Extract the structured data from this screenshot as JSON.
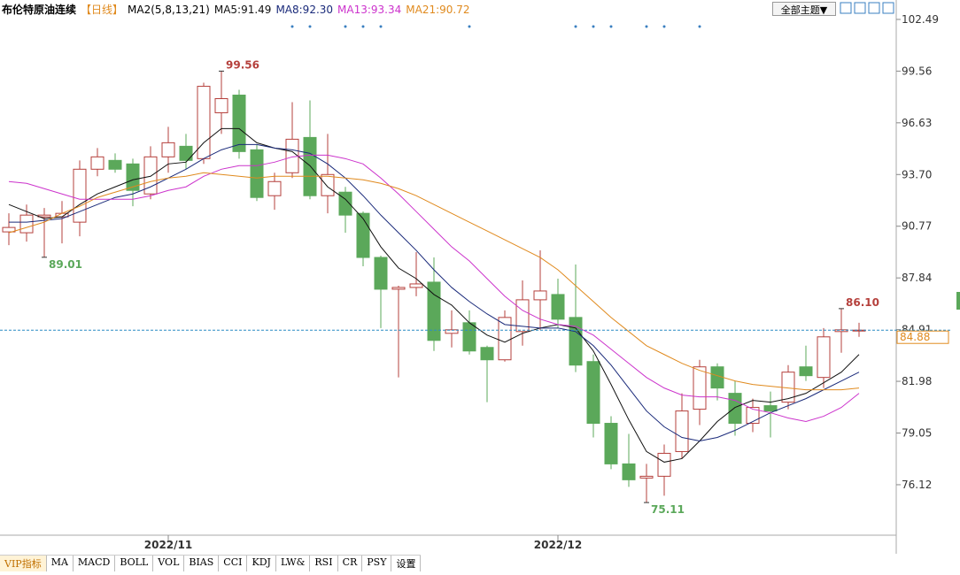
{
  "chart_data": {
    "type": "candlestick",
    "title": "布伦特原油连续",
    "period": "【日线】",
    "indicator": "MA2(5,8,13,21)",
    "up_color": "#b5403c",
    "down_color": "#5ba85a",
    "ylim": [
      73.26,
      103.59
    ],
    "yticks": [
      102.49,
      99.56,
      96.63,
      {
        "value": 93.7,
        "label": "93.70"
      },
      90.77,
      87.84,
      84.91,
      81.98,
      79.05,
      76.12
    ],
    "xticks": [
      {
        "value": 9,
        "label": "2022/11"
      },
      {
        "value": 31,
        "label": "2022/12"
      }
    ],
    "open": [
      90.45,
      90.4,
      91.3,
      91.3,
      91.0,
      94.0,
      94.5,
      94.3,
      92.6,
      94.7,
      95.3,
      94.6,
      97.2,
      98.2,
      95.1,
      92.5,
      93.8,
      95.8,
      92.5,
      92.7,
      91.5,
      89.0,
      87.2,
      87.3,
      87.6,
      84.7,
      85.3,
      83.9,
      83.2,
      84.8,
      86.6,
      86.9,
      85.6,
      83.1,
      79.6,
      77.3,
      76.5,
      76.6,
      78.0,
      80.4,
      82.8,
      81.3,
      79.6,
      80.6,
      80.8,
      82.8,
      82.2,
      84.8,
      84.88
    ],
    "high": [
      91.5,
      92.0,
      91.8,
      92.2,
      94.5,
      95.2,
      94.9,
      94.6,
      95.3,
      96.4,
      96.0,
      98.9,
      99.56,
      98.5,
      95.4,
      93.8,
      97.8,
      97.9,
      96.0,
      93.0,
      91.6,
      89.1,
      87.4,
      89.3,
      89.0,
      86.0,
      86.0,
      84.0,
      86.0,
      87.7,
      89.4,
      87.8,
      88.6,
      83.5,
      80.0,
      79.0,
      77.3,
      78.4,
      81.3,
      83.2,
      83.0,
      82.0,
      81.0,
      81.4,
      82.9,
      84.0,
      85.0,
      86.1,
      85.3
    ],
    "low": [
      89.7,
      89.9,
      89.01,
      89.8,
      90.2,
      93.6,
      93.8,
      91.9,
      92.3,
      93.8,
      94.0,
      94.3,
      96.0,
      94.6,
      92.2,
      91.7,
      93.5,
      92.3,
      91.5,
      90.4,
      88.5,
      85.0,
      82.2,
      86.8,
      83.7,
      83.9,
      83.5,
      80.8,
      83.1,
      84.0,
      84.9,
      85.0,
      82.5,
      78.8,
      77.0,
      76.0,
      75.11,
      75.5,
      77.6,
      79.5,
      80.9,
      78.9,
      79.1,
      78.8,
      80.4,
      82.0,
      81.6,
      83.6,
      84.5
    ],
    "close": [
      90.7,
      91.4,
      91.4,
      91.5,
      94.0,
      94.7,
      94.0,
      92.8,
      94.7,
      95.5,
      94.5,
      98.7,
      98.0,
      95.0,
      92.4,
      93.3,
      95.7,
      92.5,
      93.7,
      91.4,
      89.0,
      87.2,
      87.3,
      87.5,
      84.3,
      84.9,
      83.7,
      83.2,
      85.6,
      86.6,
      87.1,
      85.5,
      82.9,
      79.6,
      77.3,
      76.4,
      76.6,
      77.9,
      80.3,
      82.8,
      81.6,
      79.6,
      80.5,
      80.3,
      82.5,
      82.3,
      84.5,
      84.9,
      84.88
    ],
    "annotations": [
      {
        "value": 99.56,
        "label": "99.56"
      },
      {
        "value": 89.01,
        "label": "89.01"
      },
      {
        "value": 86.1,
        "label": "86.10"
      },
      {
        "value": 75.11,
        "label": "75.11"
      }
    ],
    "last": {
      "value": 84.88,
      "label": "84.88"
    },
    "ma": [
      {
        "name": "MA5:91.49",
        "color": "#111111",
        "values": [
          92.0,
          91.6,
          91.2,
          91.3,
          92.0,
          92.6,
          93.0,
          93.4,
          93.6,
          94.3,
          94.4,
          95.5,
          96.3,
          96.3,
          95.5,
          95.2,
          95.0,
          94.2,
          93.0,
          92.3,
          91.2,
          89.6,
          88.4,
          87.8,
          86.9,
          86.3,
          85.3,
          84.6,
          84.2,
          84.7,
          85.0,
          85.2,
          85.0,
          83.7,
          81.8,
          79.8,
          78.0,
          77.4,
          77.6,
          78.6,
          79.7,
          80.5,
          80.9,
          80.8,
          81.0,
          81.3,
          81.9,
          82.5,
          83.5
        ]
      },
      {
        "name": "MA8:92.30",
        "color": "#1a2a7a",
        "values": [
          91.0,
          91.0,
          91.1,
          91.2,
          91.6,
          92.0,
          92.4,
          92.6,
          93.0,
          93.5,
          94.0,
          94.6,
          95.1,
          95.4,
          95.4,
          95.2,
          95.1,
          94.9,
          94.3,
          93.5,
          92.5,
          91.4,
          90.4,
          89.4,
          88.3,
          87.3,
          86.5,
          85.8,
          85.2,
          85.1,
          85.0,
          85.0,
          84.8,
          84.0,
          82.9,
          81.6,
          80.3,
          79.4,
          78.8,
          78.6,
          78.8,
          79.2,
          79.7,
          80.2,
          80.6,
          81.0,
          81.5,
          82.0,
          82.5
        ]
      },
      {
        "name": "MA13:93.34",
        "color": "#cc33cc",
        "values": [
          93.3,
          93.2,
          92.9,
          92.6,
          92.3,
          92.3,
          92.3,
          92.3,
          92.5,
          92.8,
          93.0,
          93.6,
          94.0,
          94.2,
          94.2,
          94.4,
          94.7,
          94.8,
          94.8,
          94.6,
          94.3,
          93.5,
          92.6,
          91.6,
          90.6,
          89.6,
          88.8,
          87.8,
          86.8,
          86.0,
          85.5,
          85.2,
          85.1,
          84.6,
          83.8,
          83.0,
          82.2,
          81.6,
          81.2,
          81.1,
          81.1,
          80.9,
          80.4,
          80.2,
          79.9,
          79.7,
          80.0,
          80.5,
          81.3
        ]
      },
      {
        "name": "MA21:90.72",
        "color": "#e08a1e",
        "values": [
          90.4,
          90.7,
          91.0,
          91.5,
          91.9,
          92.4,
          92.7,
          93.0,
          93.3,
          93.5,
          93.6,
          93.8,
          93.7,
          93.6,
          93.5,
          93.6,
          93.6,
          93.6,
          93.6,
          93.5,
          93.4,
          93.2,
          92.9,
          92.5,
          92.0,
          91.5,
          91.0,
          90.5,
          90.0,
          89.5,
          89.0,
          88.3,
          87.4,
          86.5,
          85.6,
          84.8,
          84.0,
          83.5,
          83.0,
          82.6,
          82.3,
          82.0,
          81.8,
          81.7,
          81.6,
          81.5,
          81.5,
          81.5,
          81.6
        ]
      }
    ]
  },
  "toolbar": {
    "theme": "全部主题▼",
    "tabs": [
      "VIP指标",
      "MA",
      "MACD",
      "BOLL",
      "VOL",
      "BIAS",
      "CCI",
      "KDJ",
      "LW&",
      "RSI",
      "CR",
      "PSY",
      "设置"
    ]
  }
}
